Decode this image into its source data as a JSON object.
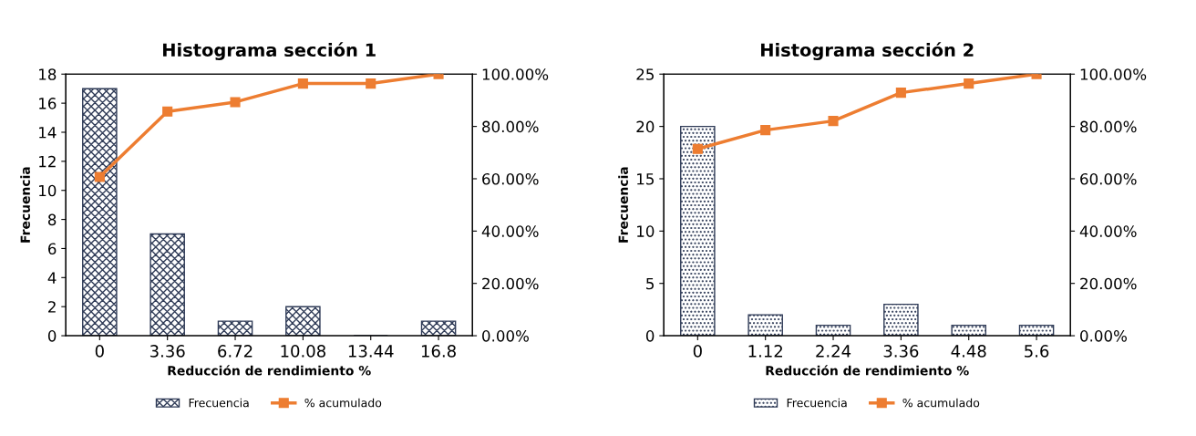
{
  "chart_data": [
    {
      "type": "bar",
      "title": "Histograma sección 1",
      "xlabel": "Reducción de rendimiento %",
      "ylabel": "Frecuencia",
      "categories": [
        "0",
        "3.36",
        "6.72",
        "10.08",
        "13.44",
        "16.8"
      ],
      "series": [
        {
          "name": "Frecuencia",
          "color": "#2f3b57",
          "values": [
            17,
            7,
            1,
            2,
            0,
            1
          ]
        },
        {
          "name": "% acumulado",
          "type": "line",
          "axis": "y2",
          "color": "#ed7d31",
          "values": [
            60.7,
            85.7,
            89.3,
            96.4,
            96.4,
            100
          ]
        }
      ],
      "ylim": [
        0,
        18
      ],
      "yticks": [
        0,
        2,
        4,
        6,
        8,
        10,
        12,
        14,
        16,
        18
      ],
      "y2lim": [
        0,
        100
      ],
      "y2ticks": [
        {
          "value": 0,
          "label": "0.00%"
        },
        {
          "value": 20,
          "label": "20.00%"
        },
        {
          "value": 40,
          "label": "40.00%"
        },
        {
          "value": 60,
          "label": "60.00%"
        },
        {
          "value": 80,
          "label": "80.00%"
        },
        {
          "value": 100,
          "label": "100.00%"
        }
      ],
      "marker": "square",
      "legend": "bottom",
      "grid": false
    },
    {
      "type": "bar",
      "title": "Histograma sección 2",
      "xlabel": "Reducción de rendimiento %",
      "ylabel": "Frecuencia",
      "categories": [
        "0",
        "1.12",
        "2.24",
        "3.36",
        "4.48",
        "5.6"
      ],
      "series": [
        {
          "name": "Frecuencia",
          "color": "#2f3b57",
          "values": [
            20,
            2,
            1,
            3,
            1,
            1
          ]
        },
        {
          "name": "% acumulado",
          "type": "line",
          "axis": "y2",
          "color": "#ed7d31",
          "values": [
            71.4,
            78.6,
            82.1,
            92.9,
            96.4,
            100
          ]
        }
      ],
      "ylim": [
        0,
        25
      ],
      "yticks": [
        0,
        5,
        10,
        15,
        20,
        25
      ],
      "y2lim": [
        0,
        100
      ],
      "y2ticks": [
        {
          "value": 0,
          "label": "0.00%"
        },
        {
          "value": 20,
          "label": "20.00%"
        },
        {
          "value": 40,
          "label": "40.00%"
        },
        {
          "value": 60,
          "label": "60.00%"
        },
        {
          "value": 80,
          "label": "80.00%"
        },
        {
          "value": 100,
          "label": "100.00%"
        }
      ],
      "marker": "square",
      "legend": "bottom",
      "grid": false
    }
  ]
}
